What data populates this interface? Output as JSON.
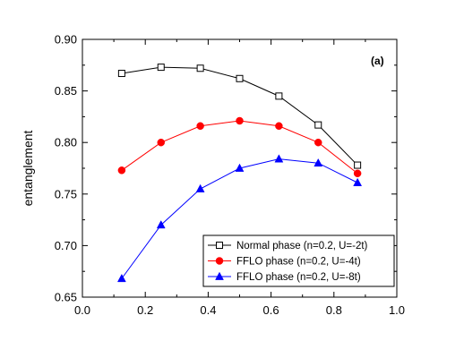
{
  "chart_data": {
    "type": "line",
    "title": "",
    "panel_label": "(a)",
    "xlabel": "",
    "ylabel": "entanglement",
    "xlim": [
      0.0,
      1.0
    ],
    "ylim": [
      0.65,
      0.9
    ],
    "x_ticks": [
      0.0,
      0.2,
      0.4,
      0.6,
      0.8,
      1.0
    ],
    "y_ticks": [
      0.65,
      0.7,
      0.75,
      0.8,
      0.85,
      0.9
    ],
    "x_tick_labels": [
      "0.0",
      "0.2",
      "0.4",
      "0.6",
      "0.8",
      "1.0"
    ],
    "y_tick_labels": [
      "0.65",
      "0.70",
      "0.75",
      "0.80",
      "0.85",
      "0.90"
    ],
    "grid": false,
    "legend_position": "bottom-right",
    "x": [
      0.125,
      0.25,
      0.375,
      0.5,
      0.625,
      0.75,
      0.875
    ],
    "series": [
      {
        "name": "Normal phase (n=0.2, U=-2t)",
        "color": "#000000",
        "marker": "open-square",
        "values": [
          0.867,
          0.873,
          0.872,
          0.862,
          0.845,
          0.817,
          0.778
        ]
      },
      {
        "name": "FFLO phase (n=0.2, U=-4t)",
        "color": "#ff0000",
        "marker": "filled-circle",
        "values": [
          0.773,
          0.8,
          0.816,
          0.821,
          0.816,
          0.8,
          0.77
        ]
      },
      {
        "name": "FFLO phase (n=0.2, U=-8t)",
        "color": "#0000ff",
        "marker": "filled-triangle",
        "values": [
          0.668,
          0.72,
          0.755,
          0.775,
          0.784,
          0.78,
          0.761
        ]
      }
    ]
  }
}
